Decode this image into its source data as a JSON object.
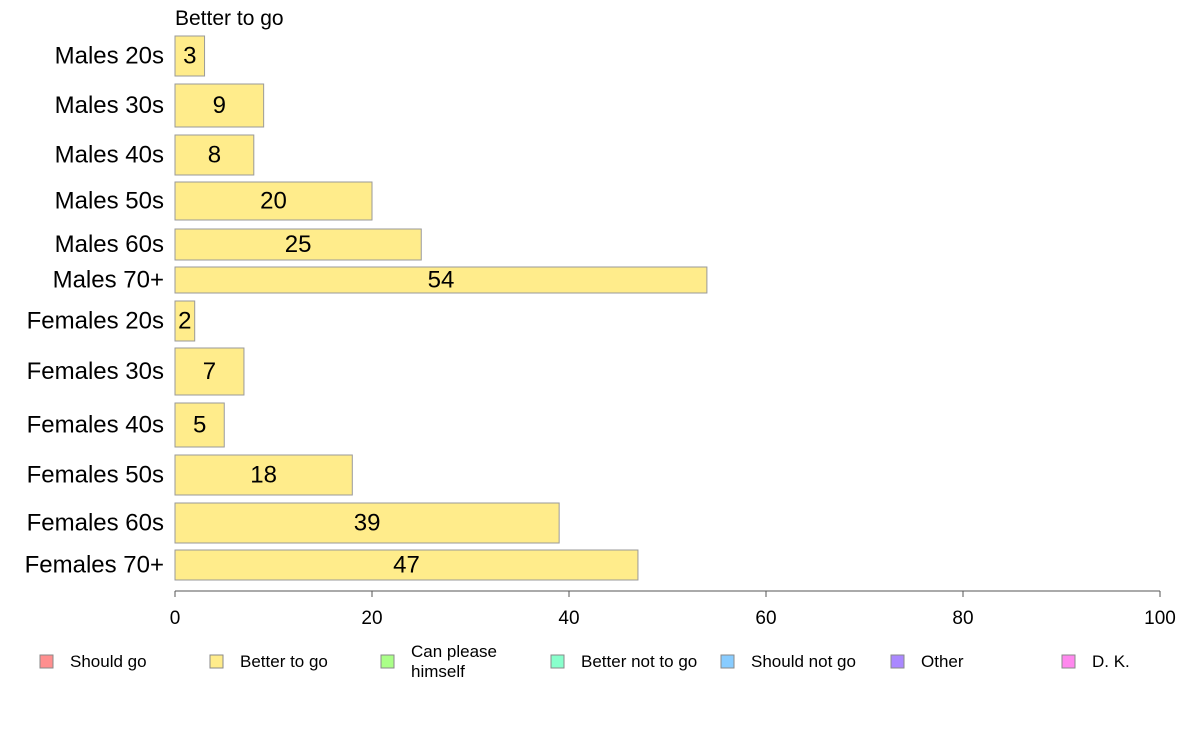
{
  "chart_data": {
    "type": "bar",
    "orientation": "horizontal",
    "panel_title": "Better to go",
    "categories": [
      "Males 20s",
      "Males 30s",
      "Males 40s",
      "Males 50s",
      "Males 60s",
      "Males 70+",
      "Females 20s",
      "Females 30s",
      "Females 40s",
      "Females 50s",
      "Females 60s",
      "Females 70+"
    ],
    "values": [
      3,
      9,
      8,
      20,
      25,
      54,
      2,
      7,
      5,
      18,
      39,
      47
    ],
    "xlim": [
      0,
      100
    ],
    "xticks": [
      "0",
      "20",
      "40",
      "60",
      "80",
      "100"
    ],
    "grid": false,
    "legend_position": "bottom",
    "legend": [
      {
        "name": "Should go",
        "color": "#ff8f8f"
      },
      {
        "name": "Better to go",
        "color": "#ffec8b"
      },
      {
        "name": "Can please himself",
        "color": "#aaff88"
      },
      {
        "name": "Better not to go",
        "color": "#88ffcc"
      },
      {
        "name": "Should not go",
        "color": "#88ccff"
      },
      {
        "name": "Other",
        "color": "#aa88ff"
      },
      {
        "name": "D. K.",
        "color": "#ff88ee"
      }
    ],
    "bar_color": "#ffec8b"
  }
}
